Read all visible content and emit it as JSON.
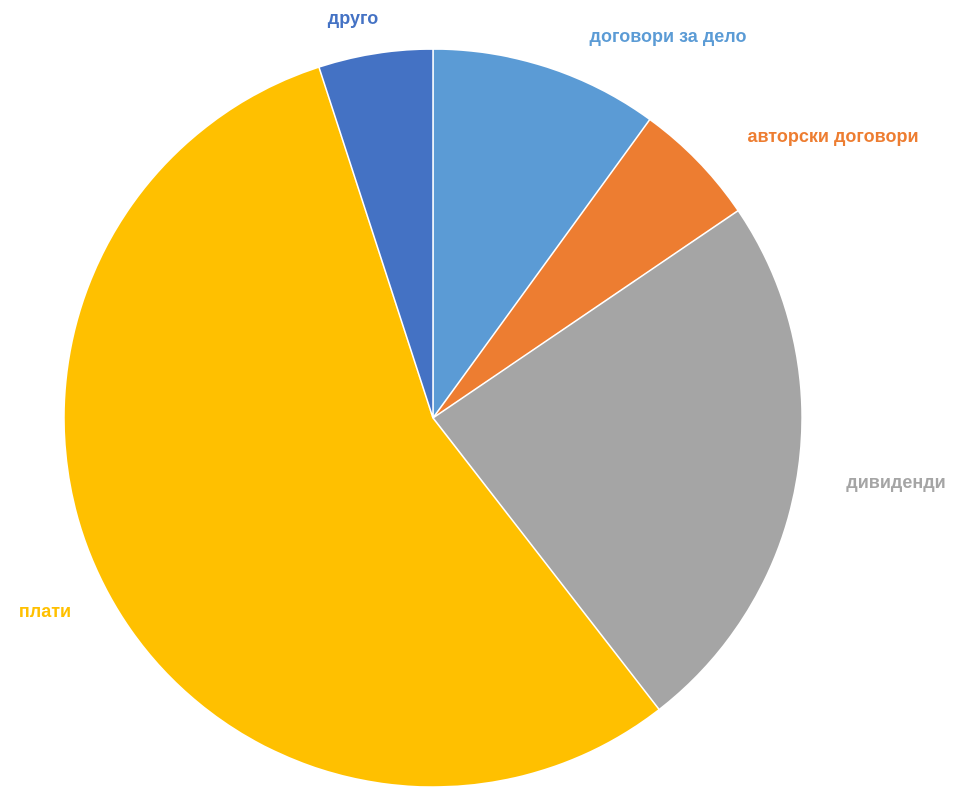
{
  "chart_data": {
    "type": "pie",
    "categories": [
      "договори за дело",
      "авторски договори",
      "дивиденди",
      "плати",
      "друго"
    ],
    "values": [
      10,
      5.5,
      24,
      55.5,
      5
    ],
    "colors": [
      "#5b9bd5",
      "#ed7d31",
      "#a5a5a5",
      "#ffc000",
      "#4472c4"
    ]
  }
}
